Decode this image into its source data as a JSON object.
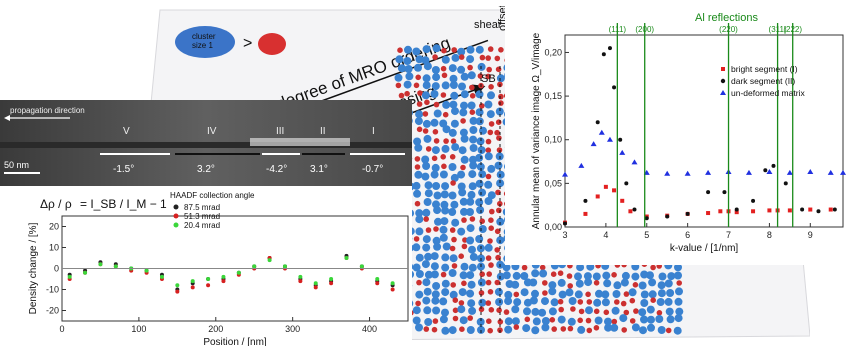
{
  "schematic": {
    "cluster_label_line1": "cluster",
    "cluster_label_line2": "size 1",
    "compare_symbol": ">",
    "axis_label": "degree of MRO ordering",
    "increasing_label": "easing",
    "decreasing_label": "decreasing",
    "shear_label": "shear",
    "offset_label": "offset",
    "sb_label": "SB"
  },
  "tem": {
    "propagation_label": "propagation direction",
    "scale_label": "50 nm",
    "segments": [
      {
        "numeral": "V",
        "angle": "-1.5°"
      },
      {
        "numeral": "IV",
        "angle": "3.2°"
      },
      {
        "numeral": "III",
        "angle": "-4.2°"
      },
      {
        "numeral": "II",
        "angle": "3.1°"
      },
      {
        "numeral": "I",
        "angle": "-0.7°"
      }
    ]
  },
  "density": {
    "formula_lhs": "Δρ / ρ",
    "formula_rhs": "= I_SB / I_M − 1",
    "legend_title": "HAADF collection angle",
    "colors": {
      "s1": "#222222",
      "s2": "#d62020",
      "s3": "#3ad63a"
    },
    "chart_data": {
      "type": "scatter",
      "xlabel": "Position / [nm]",
      "ylabel": "Density change / [%]",
      "xlim": [
        0,
        450
      ],
      "ylim": [
        -25,
        25
      ],
      "xticks": [
        "0",
        "100",
        "200",
        "300",
        "400"
      ],
      "yticks": [
        "20",
        "10",
        "0",
        "-10",
        "-20"
      ],
      "series": [
        {
          "name": "87.5 mrad",
          "x": [
            10,
            30,
            50,
            70,
            90,
            110,
            130,
            150,
            170,
            190,
            210,
            230,
            250,
            270,
            290,
            310,
            330,
            350,
            370,
            390,
            410,
            430
          ],
          "values": [
            -3,
            -1,
            3,
            2,
            0,
            -1,
            -3,
            -10,
            -7,
            -5,
            -5,
            -2,
            1,
            5,
            1,
            -5,
            -8,
            -6,
            6,
            1,
            -6,
            -8
          ]
        },
        {
          "name": "51.3 mrad",
          "x": [
            10,
            30,
            50,
            70,
            90,
            110,
            130,
            150,
            170,
            190,
            210,
            230,
            250,
            270,
            290,
            310,
            330,
            350,
            370,
            390,
            410,
            430
          ],
          "values": [
            -5,
            -2,
            2,
            1,
            -1,
            -2,
            -5,
            -11,
            -9,
            -8,
            -6,
            -3,
            0,
            5,
            0,
            -6,
            -9,
            -7,
            5,
            0,
            -7,
            -10
          ]
        },
        {
          "name": "20.4 mrad",
          "x": [
            10,
            30,
            50,
            70,
            90,
            110,
            130,
            150,
            170,
            190,
            210,
            230,
            250,
            270,
            290,
            310,
            330,
            350,
            370,
            390,
            410,
            430
          ],
          "values": [
            -4,
            -2,
            2,
            1,
            0,
            -1,
            -4,
            -8,
            -6,
            -5,
            -4,
            -2,
            1,
            4,
            1,
            -4,
            -7,
            -5,
            5,
            1,
            -5,
            -7
          ]
        }
      ]
    }
  },
  "variance": {
    "reflections_title": "Al reflections",
    "reflections": [
      {
        "label": "(111)",
        "k": 4.28
      },
      {
        "label": "(200)",
        "k": 4.95
      },
      {
        "label": "(220)",
        "k": 7.0
      },
      {
        "label": "(311)",
        "k": 8.2
      },
      {
        "label": "(222)",
        "k": 8.57
      }
    ],
    "colors": {
      "bright": "#e32020",
      "dark": "#111111",
      "matrix": "#2030e0",
      "reflection": "#1a8a1a"
    },
    "chart_data": {
      "type": "scatter",
      "xlabel": "k-value / [1/nm]",
      "ylabel": "Annular mean of variance image Ω_V/image",
      "xlim": [
        3,
        9.8
      ],
      "ylim": [
        0,
        0.22
      ],
      "xticks": [
        "3",
        "4",
        "5",
        "6",
        "7",
        "8",
        "9"
      ],
      "yticks": [
        "0,00",
        "0,05",
        "0,10",
        "0,15",
        "0,20"
      ],
      "series": [
        {
          "name": "bright segment (I)",
          "x": [
            3.0,
            3.5,
            3.8,
            4.0,
            4.2,
            4.4,
            4.6,
            5.0,
            5.5,
            6.0,
            6.5,
            6.8,
            7.0,
            7.2,
            7.6,
            8.0,
            8.2,
            8.5,
            9.0,
            9.5
          ],
          "values": [
            0.005,
            0.015,
            0.035,
            0.046,
            0.042,
            0.03,
            0.018,
            0.012,
            0.013,
            0.015,
            0.016,
            0.018,
            0.018,
            0.017,
            0.018,
            0.019,
            0.019,
            0.019,
            0.02,
            0.02
          ]
        },
        {
          "name": "dark segment (II)",
          "x": [
            3.0,
            3.5,
            3.8,
            3.95,
            4.1,
            4.2,
            4.35,
            4.5,
            4.7,
            5.0,
            5.5,
            6.0,
            6.5,
            6.9,
            7.2,
            7.6,
            7.9,
            8.1,
            8.4,
            8.8,
            9.2,
            9.6
          ],
          "values": [
            0.004,
            0.03,
            0.12,
            0.198,
            0.205,
            0.16,
            0.1,
            0.05,
            0.02,
            0.01,
            0.012,
            0.015,
            0.04,
            0.04,
            0.02,
            0.03,
            0.065,
            0.07,
            0.05,
            0.02,
            0.018,
            0.02
          ]
        },
        {
          "name": "un-deformed matrix",
          "x": [
            3.0,
            3.4,
            3.7,
            3.9,
            4.1,
            4.4,
            4.7,
            5.0,
            5.5,
            6.0,
            6.5,
            7.0,
            7.5,
            8.0,
            8.5,
            9.0,
            9.5,
            9.8
          ],
          "values": [
            0.06,
            0.07,
            0.095,
            0.108,
            0.1,
            0.085,
            0.074,
            0.062,
            0.061,
            0.061,
            0.062,
            0.063,
            0.062,
            0.063,
            0.062,
            0.063,
            0.062,
            0.062
          ]
        }
      ]
    }
  }
}
